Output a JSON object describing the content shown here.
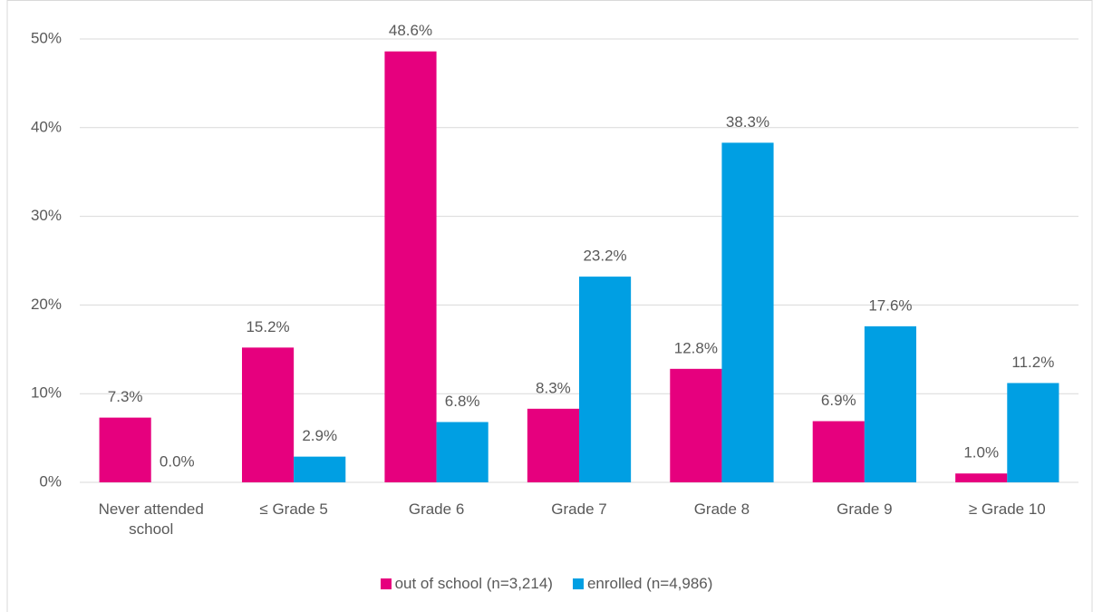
{
  "chart_data": {
    "type": "bar",
    "categories": [
      "Never attended school",
      "≤ Grade 5",
      "Grade 6",
      "Grade 7",
      "Grade 8",
      "Grade 9",
      "≥ Grade 10"
    ],
    "series": [
      {
        "name": "out of school (n=3,214)",
        "color": "#e6007e",
        "values": [
          7.3,
          15.2,
          48.6,
          8.3,
          12.8,
          6.9,
          1.0
        ],
        "value_labels": [
          "7.3%",
          "15.2%",
          "48.6%",
          "8.3%",
          "12.8%",
          "6.9%",
          "1.0%"
        ]
      },
      {
        "name": "enrolled (n=4,986)",
        "color": "#009fe3",
        "values": [
          0.0,
          2.9,
          6.8,
          23.2,
          38.3,
          17.6,
          11.2
        ],
        "value_labels": [
          "0.0%",
          "2.9%",
          "6.8%",
          "23.2%",
          "38.3%",
          "17.6%",
          "11.2%"
        ]
      }
    ],
    "ylim": [
      0,
      50
    ],
    "yticks": [
      {
        "value": 0,
        "label": "0%"
      },
      {
        "value": 10,
        "label": "10%"
      },
      {
        "value": 20,
        "label": "20%"
      },
      {
        "value": 30,
        "label": "30%"
      },
      {
        "value": 40,
        "label": "40%"
      },
      {
        "value": 50,
        "label": "50%"
      }
    ],
    "grid": true,
    "legend": "bottom"
  }
}
